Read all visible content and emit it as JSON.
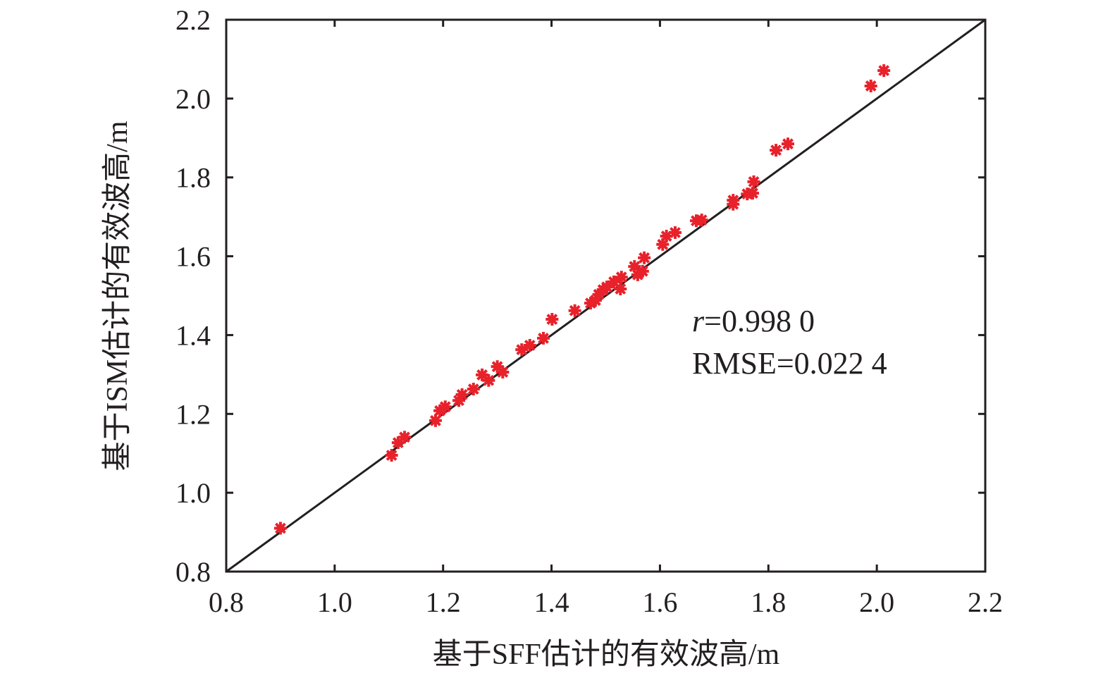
{
  "chart_data": {
    "type": "scatter",
    "title": "",
    "xlabel": "基于SFF估计的有效波高/m",
    "ylabel": "基于ISM估计的有效波高/m",
    "xlim": [
      0.8,
      2.2
    ],
    "ylim": [
      0.8,
      2.2
    ],
    "xticks": [
      "0.8",
      "1.0",
      "1.2",
      "1.4",
      "1.6",
      "1.8",
      "2.0",
      "2.2"
    ],
    "yticks": [
      "0.8",
      "1.0",
      "1.2",
      "1.4",
      "1.6",
      "1.8",
      "2.0",
      "2.2"
    ],
    "grid": false,
    "marker_color": "#e8212a",
    "marker": "asterisk",
    "reference_line": {
      "name": "1:1 line",
      "from": [
        0.8,
        0.8
      ],
      "to": [
        2.2,
        2.2
      ],
      "color": "#231f20"
    },
    "annotations": {
      "r_label": "r",
      "r_value": "=0.998 0",
      "rmse": "RMSE=0.022 4"
    },
    "points": [
      [
        0.9,
        0.91
      ],
      [
        1.105,
        1.095
      ],
      [
        1.117,
        1.127
      ],
      [
        1.129,
        1.141
      ],
      [
        1.186,
        1.183
      ],
      [
        1.194,
        1.208
      ],
      [
        1.204,
        1.218
      ],
      [
        1.229,
        1.234
      ],
      [
        1.235,
        1.249
      ],
      [
        1.256,
        1.263
      ],
      [
        1.272,
        1.299
      ],
      [
        1.284,
        1.285
      ],
      [
        1.3,
        1.32
      ],
      [
        1.31,
        1.306
      ],
      [
        1.345,
        1.363
      ],
      [
        1.36,
        1.374
      ],
      [
        1.385,
        1.392
      ],
      [
        1.401,
        1.44
      ],
      [
        1.443,
        1.462
      ],
      [
        1.472,
        1.481
      ],
      [
        1.481,
        1.488
      ],
      [
        1.487,
        1.503
      ],
      [
        1.495,
        1.515
      ],
      [
        1.502,
        1.522
      ],
      [
        1.515,
        1.535
      ],
      [
        1.527,
        1.517
      ],
      [
        1.529,
        1.547
      ],
      [
        1.553,
        1.574
      ],
      [
        1.559,
        1.553
      ],
      [
        1.568,
        1.562
      ],
      [
        1.571,
        1.596
      ],
      [
        1.605,
        1.63
      ],
      [
        1.612,
        1.651
      ],
      [
        1.628,
        1.66
      ],
      [
        1.667,
        1.69
      ],
      [
        1.677,
        1.692
      ],
      [
        1.735,
        1.732
      ],
      [
        1.735,
        1.742
      ],
      [
        1.761,
        1.758
      ],
      [
        1.771,
        1.76
      ],
      [
        1.773,
        1.789
      ],
      [
        1.814,
        1.869
      ],
      [
        1.836,
        1.885
      ],
      [
        1.989,
        2.032
      ],
      [
        2.013,
        2.071
      ]
    ]
  }
}
